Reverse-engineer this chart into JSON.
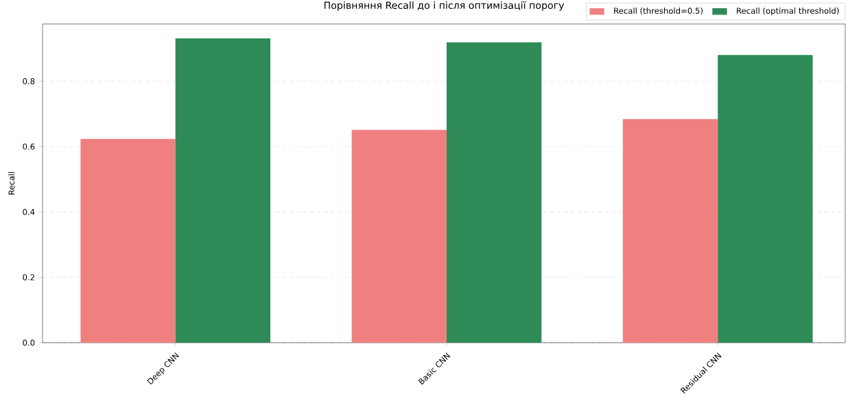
{
  "chart_data": {
    "type": "bar",
    "title": "Порівняння Recall до і після оптимізації порогу",
    "ylabel": "Recall",
    "categories": [
      "Deep CNN",
      "Basic CNN",
      "Residual CNN"
    ],
    "series": [
      {
        "name": "Recall (threshold=0.5)",
        "color": "#f08080",
        "values": [
          0.623,
          0.651,
          0.684
        ]
      },
      {
        "name": "Recall (optimal threshold)",
        "color": "#2e8b57",
        "values": [
          0.931,
          0.919,
          0.88
        ]
      }
    ],
    "ylim": [
      0,
      0.975
    ],
    "yticks": [
      {
        "value": 0,
        "label": "0.0"
      },
      {
        "value": 0.2,
        "label": "0.2"
      },
      {
        "value": 0.4,
        "label": "0.4"
      },
      {
        "value": 0.6,
        "label": "0.6"
      },
      {
        "value": 0.8,
        "label": "0.8"
      }
    ],
    "grid": "y",
    "legend": "top right"
  }
}
